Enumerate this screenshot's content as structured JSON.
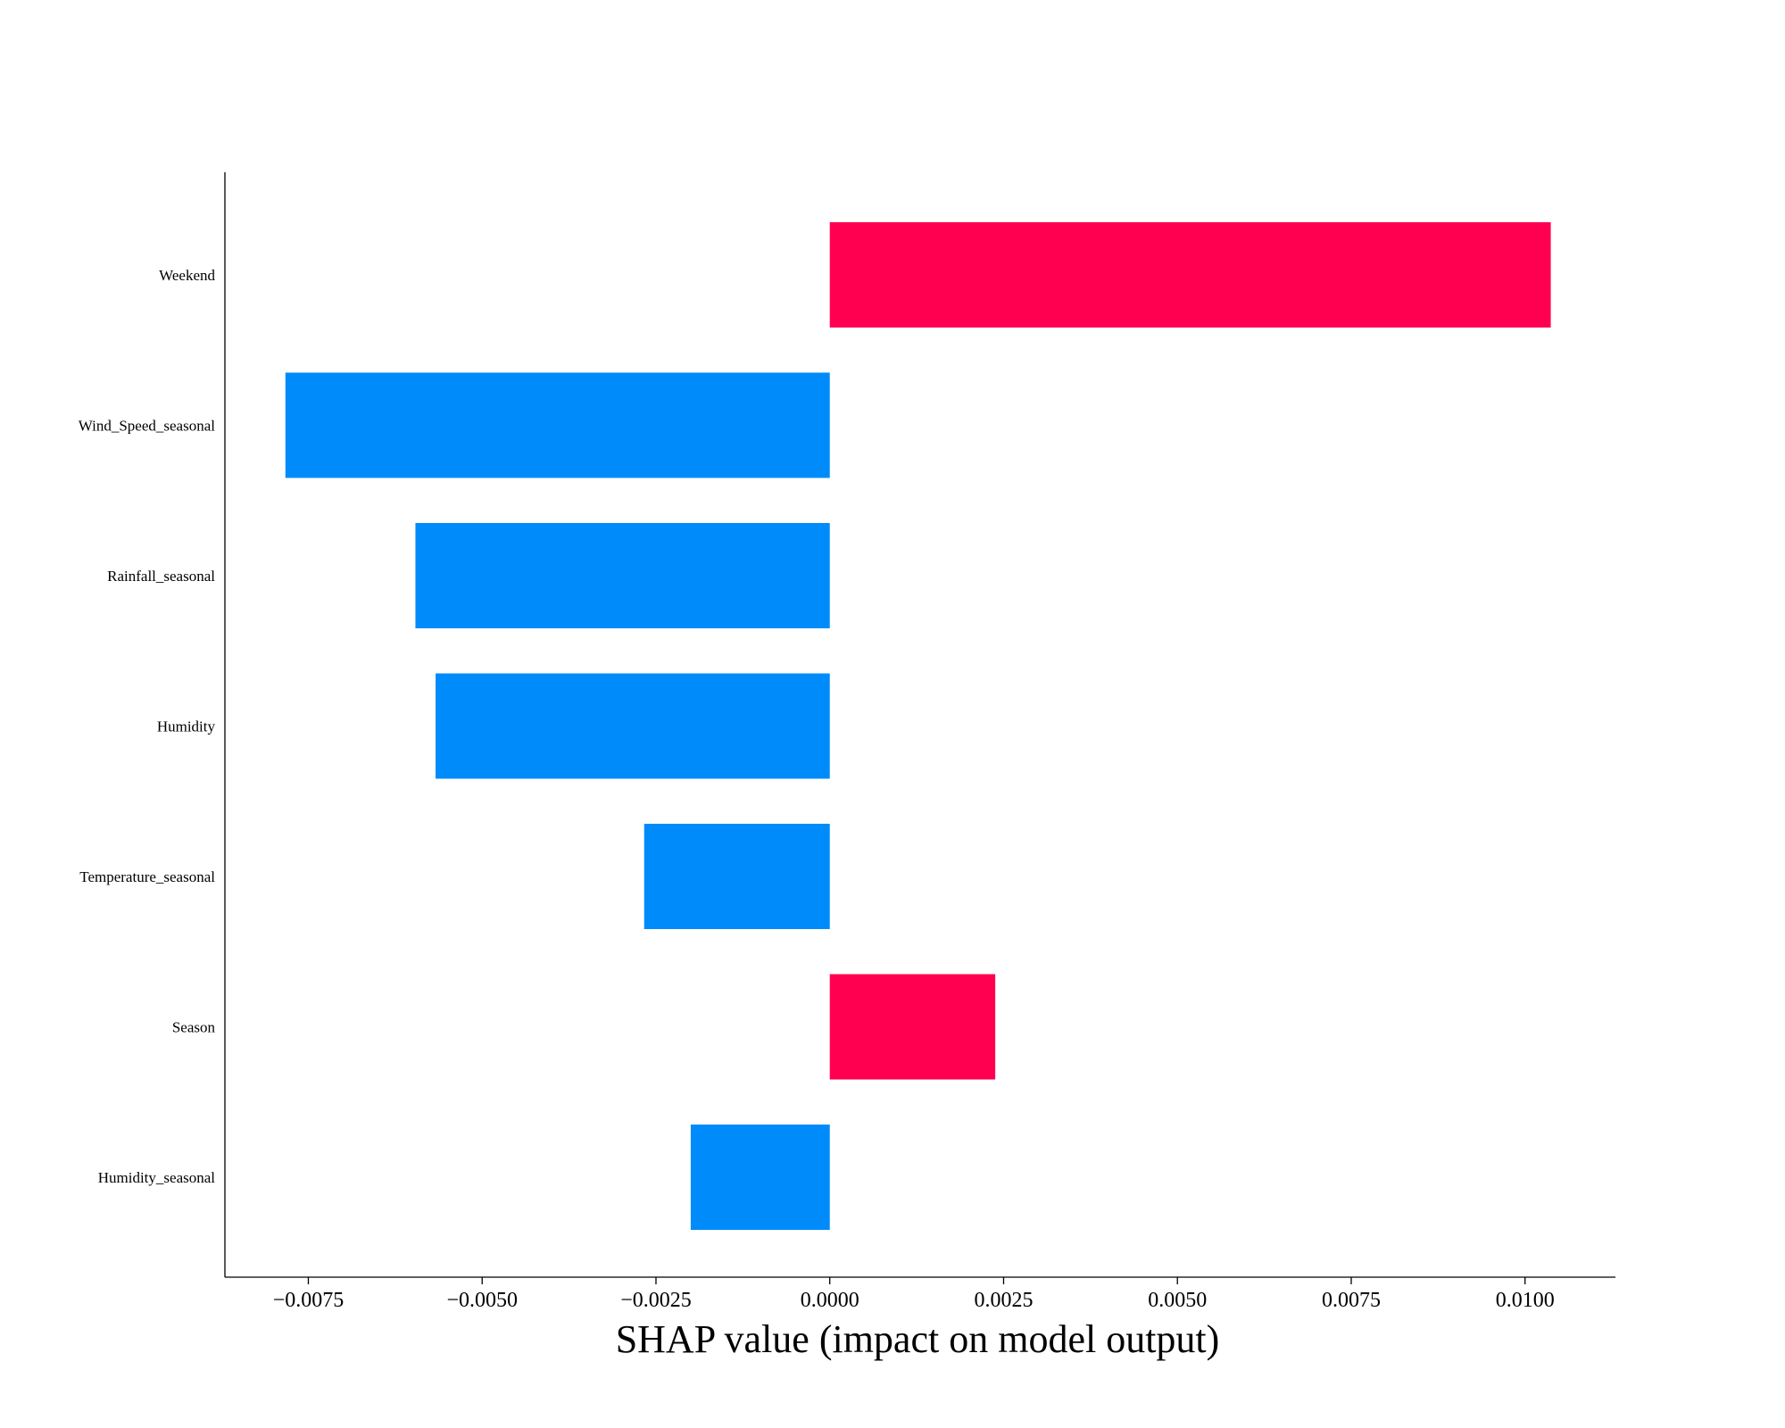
{
  "chart_data": {
    "type": "bar",
    "orientation": "horizontal",
    "xlabel": "SHAP value (impact on model output)",
    "xlim": [
      -0.0087,
      0.0113
    ],
    "xticks": [
      -0.0075,
      -0.005,
      -0.0025,
      0.0,
      0.0025,
      0.005,
      0.0075,
      0.01
    ],
    "xtick_labels": [
      "−0.0075",
      "−0.0050",
      "−0.0025",
      "0.0000",
      "0.0025",
      "0.0050",
      "0.0075",
      "0.0100"
    ],
    "categories": [
      "Weekend",
      "Wind_Speed_seasonal",
      "Rainfall_seasonal",
      "Humidity",
      "Temperature_seasonal",
      "Season",
      "Humidity_seasonal"
    ],
    "values": [
      0.01037,
      -0.00783,
      -0.00596,
      -0.00567,
      -0.00267,
      0.00238,
      -0.002
    ],
    "colors": {
      "positive": "#ff0051",
      "negative": "#008bfb"
    },
    "grid": false,
    "legend": "none"
  }
}
